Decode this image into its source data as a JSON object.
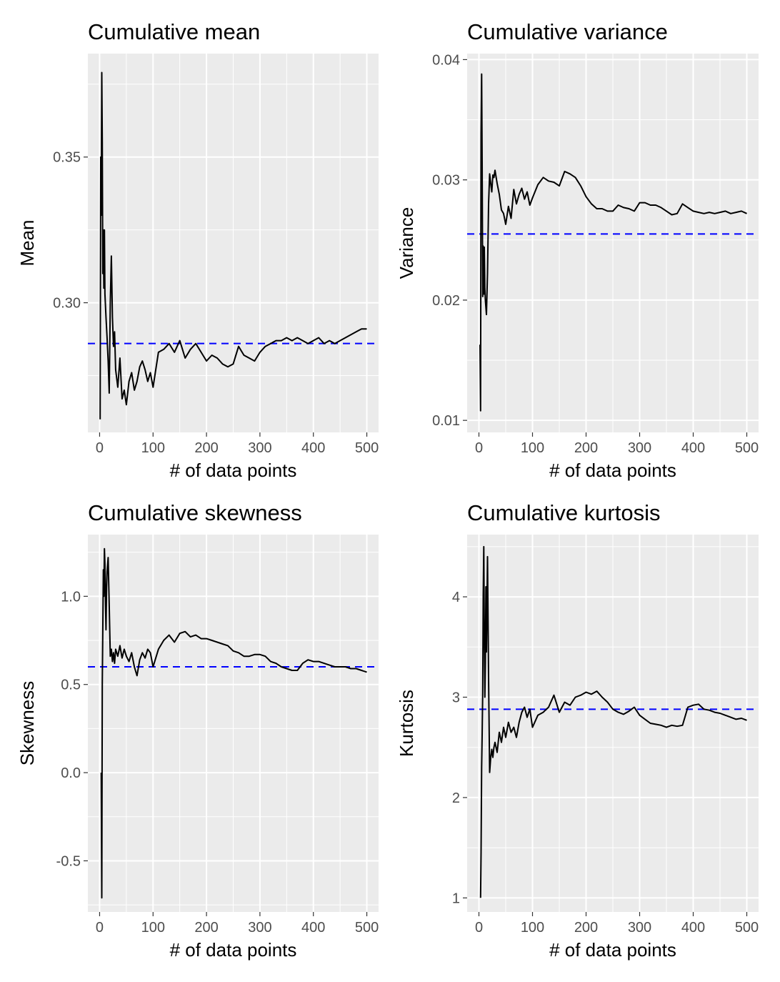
{
  "chart_data": [
    {
      "type": "line",
      "title": "Cumulative mean",
      "xlabel": "# of data points",
      "ylabel": "Mean",
      "xlim": [
        -22,
        522
      ],
      "ylim": [
        0.2555,
        0.3855
      ],
      "xticks": [
        0,
        100,
        200,
        300,
        400,
        500
      ],
      "xtick_labels": [
        "0",
        "100",
        "200",
        "300",
        "400",
        "500"
      ],
      "yticks": [
        0.3,
        0.35
      ],
      "ytick_labels": [
        "0.30",
        "0.35"
      ],
      "reference_line": 0.286,
      "x": [
        1,
        2,
        3,
        4,
        5,
        6,
        7,
        8,
        9,
        10,
        12,
        14,
        16,
        18,
        20,
        22,
        24,
        26,
        28,
        30,
        34,
        38,
        42,
        46,
        50,
        55,
        60,
        65,
        70,
        75,
        80,
        85,
        90,
        95,
        100,
        110,
        120,
        130,
        140,
        150,
        160,
        170,
        180,
        190,
        200,
        210,
        220,
        230,
        240,
        250,
        260,
        270,
        280,
        290,
        300,
        310,
        320,
        330,
        340,
        350,
        360,
        370,
        380,
        390,
        400,
        410,
        420,
        430,
        440,
        450,
        460,
        470,
        480,
        490,
        500
      ],
      "y": [
        0.26,
        0.35,
        0.33,
        0.379,
        0.355,
        0.31,
        0.325,
        0.305,
        0.325,
        0.303,
        0.295,
        0.288,
        0.28,
        0.269,
        0.3,
        0.316,
        0.295,
        0.285,
        0.29,
        0.277,
        0.271,
        0.281,
        0.267,
        0.27,
        0.265,
        0.273,
        0.276,
        0.27,
        0.273,
        0.278,
        0.28,
        0.277,
        0.273,
        0.276,
        0.271,
        0.283,
        0.284,
        0.286,
        0.283,
        0.287,
        0.281,
        0.284,
        0.286,
        0.283,
        0.28,
        0.282,
        0.281,
        0.279,
        0.278,
        0.279,
        0.285,
        0.282,
        0.281,
        0.28,
        0.283,
        0.285,
        0.286,
        0.287,
        0.287,
        0.288,
        0.287,
        0.288,
        0.287,
        0.286,
        0.287,
        0.288,
        0.286,
        0.287,
        0.286,
        0.287,
        0.288,
        0.289,
        0.29,
        0.291,
        0.291
      ]
    },
    {
      "type": "line",
      "title": "Cumulative variance",
      "xlabel": "# of data points",
      "ylabel": "Variance",
      "xlim": [
        -22,
        522
      ],
      "ylim": [
        0.009,
        0.0405
      ],
      "xticks": [
        0,
        100,
        200,
        300,
        400,
        500
      ],
      "xtick_labels": [
        "0",
        "100",
        "200",
        "300",
        "400",
        "500"
      ],
      "yticks": [
        0.01,
        0.02,
        0.03,
        0.04
      ],
      "ytick_labels": [
        "0.01",
        "0.02",
        "0.03",
        "0.04"
      ],
      "reference_line": 0.0255,
      "x": [
        2,
        3,
        4,
        5,
        6,
        7,
        8,
        9,
        10,
        11,
        12,
        14,
        16,
        18,
        20,
        22,
        24,
        26,
        28,
        30,
        34,
        38,
        42,
        46,
        50,
        55,
        60,
        65,
        70,
        75,
        80,
        85,
        90,
        95,
        100,
        110,
        120,
        130,
        140,
        150,
        160,
        170,
        180,
        190,
        200,
        210,
        220,
        230,
        240,
        250,
        260,
        270,
        280,
        290,
        300,
        310,
        320,
        330,
        340,
        350,
        360,
        370,
        380,
        390,
        400,
        410,
        420,
        430,
        440,
        450,
        460,
        470,
        480,
        490,
        500
      ],
      "y": [
        0.0163,
        0.0108,
        0.0338,
        0.0388,
        0.0315,
        0.0203,
        0.0245,
        0.0205,
        0.0244,
        0.021,
        0.02,
        0.0188,
        0.0222,
        0.028,
        0.0305,
        0.0297,
        0.029,
        0.0304,
        0.0302,
        0.0308,
        0.0297,
        0.0288,
        0.0275,
        0.0272,
        0.0263,
        0.0278,
        0.0268,
        0.0292,
        0.028,
        0.0288,
        0.0293,
        0.0284,
        0.029,
        0.0279,
        0.0285,
        0.0296,
        0.0302,
        0.0299,
        0.0298,
        0.0295,
        0.0307,
        0.0305,
        0.0302,
        0.0295,
        0.0286,
        0.028,
        0.0276,
        0.0276,
        0.0274,
        0.0274,
        0.0279,
        0.0277,
        0.0276,
        0.0274,
        0.0281,
        0.0281,
        0.0279,
        0.0279,
        0.0277,
        0.0274,
        0.0271,
        0.0272,
        0.028,
        0.0277,
        0.0274,
        0.0273,
        0.0272,
        0.0273,
        0.0272,
        0.0273,
        0.0274,
        0.0272,
        0.0273,
        0.0274,
        0.0272
      ]
    },
    {
      "type": "line",
      "title": "Cumulative skewness",
      "xlabel": "# of data points",
      "ylabel": "Skewness",
      "xlim": [
        -22,
        522
      ],
      "ylim": [
        -0.79,
        1.35
      ],
      "xticks": [
        0,
        100,
        200,
        300,
        400,
        500
      ],
      "xtick_labels": [
        "0",
        "100",
        "200",
        "300",
        "400",
        "500"
      ],
      "yticks": [
        -0.5,
        0.0,
        0.5,
        1.0
      ],
      "ytick_labels": [
        "-0.5",
        "0.0",
        "0.5",
        "1.0"
      ],
      "reference_line": 0.6,
      "x": [
        3,
        4,
        5,
        6,
        7,
        8,
        9,
        10,
        11,
        12,
        13,
        14,
        16,
        18,
        20,
        22,
        24,
        26,
        28,
        30,
        34,
        38,
        42,
        46,
        50,
        55,
        60,
        65,
        70,
        75,
        80,
        85,
        90,
        95,
        100,
        110,
        120,
        130,
        140,
        150,
        160,
        170,
        180,
        190,
        200,
        210,
        220,
        230,
        240,
        250,
        260,
        270,
        280,
        290,
        300,
        310,
        320,
        330,
        340,
        350,
        360,
        370,
        380,
        390,
        400,
        410,
        420,
        430,
        440,
        450,
        460,
        470,
        480,
        490,
        500
      ],
      "y": [
        0.0,
        -0.71,
        0.5,
        0.8,
        1.15,
        1.0,
        1.27,
        1.18,
        0.95,
        0.81,
        1.05,
        1.14,
        1.22,
        0.95,
        0.66,
        0.7,
        0.63,
        0.68,
        0.62,
        0.7,
        0.66,
        0.72,
        0.65,
        0.7,
        0.66,
        0.63,
        0.68,
        0.6,
        0.55,
        0.64,
        0.68,
        0.65,
        0.7,
        0.68,
        0.6,
        0.7,
        0.75,
        0.78,
        0.74,
        0.79,
        0.8,
        0.77,
        0.78,
        0.76,
        0.76,
        0.75,
        0.74,
        0.73,
        0.72,
        0.69,
        0.68,
        0.66,
        0.66,
        0.67,
        0.67,
        0.66,
        0.63,
        0.62,
        0.6,
        0.59,
        0.58,
        0.58,
        0.62,
        0.64,
        0.63,
        0.63,
        0.62,
        0.61,
        0.6,
        0.6,
        0.6,
        0.59,
        0.59,
        0.58,
        0.57
      ]
    },
    {
      "type": "line",
      "title": "Cumulative kurtosis",
      "xlabel": "# of data points",
      "ylabel": "Kurtosis",
      "xlim": [
        -22,
        522
      ],
      "ylim": [
        0.86,
        4.62
      ],
      "xticks": [
        0,
        100,
        200,
        300,
        400,
        500
      ],
      "xtick_labels": [
        "0",
        "100",
        "200",
        "300",
        "400",
        "500"
      ],
      "yticks": [
        1,
        2,
        3,
        4
      ],
      "ytick_labels": [
        "1",
        "2",
        "3",
        "4"
      ],
      "reference_line": 2.88,
      "x": [
        3,
        4,
        5,
        6,
        7,
        8,
        9,
        10,
        11,
        12,
        13,
        14,
        16,
        18,
        20,
        22,
        24,
        26,
        28,
        30,
        34,
        38,
        42,
        46,
        50,
        55,
        60,
        65,
        70,
        75,
        80,
        85,
        90,
        95,
        100,
        110,
        120,
        130,
        140,
        150,
        160,
        170,
        180,
        190,
        200,
        210,
        220,
        230,
        240,
        250,
        260,
        270,
        280,
        290,
        300,
        310,
        320,
        330,
        340,
        350,
        360,
        370,
        380,
        390,
        400,
        410,
        420,
        430,
        440,
        450,
        460,
        470,
        480,
        490,
        500
      ],
      "y": [
        1.0,
        1.45,
        2.3,
        2.62,
        3.05,
        4.0,
        4.5,
        3.65,
        3.0,
        3.35,
        4.1,
        3.45,
        4.4,
        3.2,
        2.25,
        2.4,
        2.48,
        2.4,
        2.5,
        2.55,
        2.45,
        2.65,
        2.55,
        2.7,
        2.6,
        2.75,
        2.65,
        2.7,
        2.6,
        2.75,
        2.85,
        2.9,
        2.8,
        2.88,
        2.7,
        2.82,
        2.85,
        2.9,
        3.02,
        2.85,
        2.95,
        2.92,
        3.0,
        3.02,
        3.05,
        3.03,
        3.06,
        3.0,
        2.95,
        2.88,
        2.85,
        2.83,
        2.86,
        2.9,
        2.82,
        2.78,
        2.74,
        2.73,
        2.72,
        2.7,
        2.72,
        2.71,
        2.72,
        2.9,
        2.92,
        2.93,
        2.88,
        2.87,
        2.85,
        2.84,
        2.82,
        2.8,
        2.78,
        2.79,
        2.77
      ]
    }
  ]
}
